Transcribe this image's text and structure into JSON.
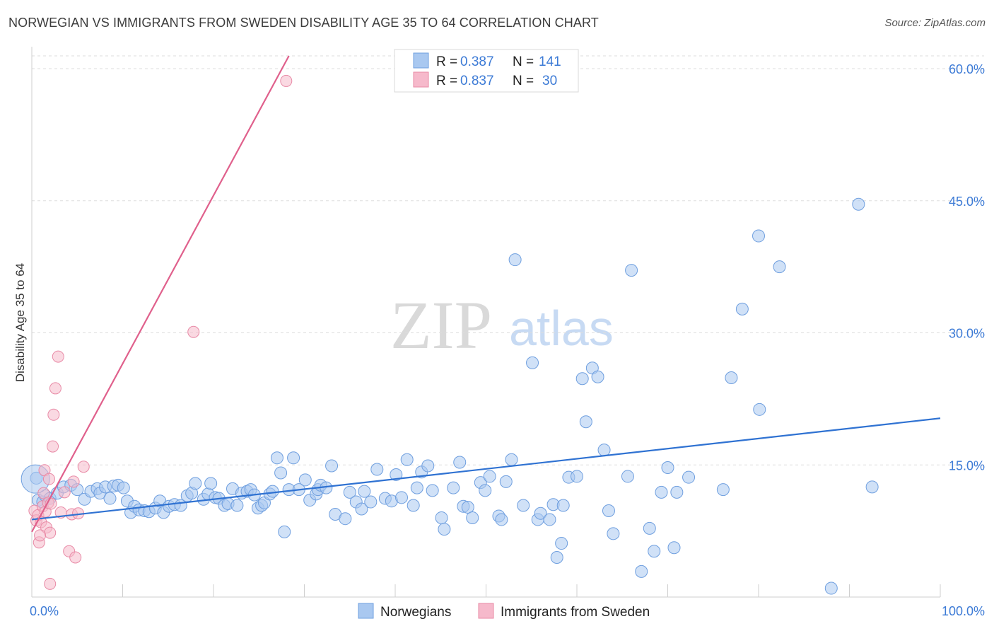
{
  "title": "NORWEGIAN VS IMMIGRANTS FROM SWEDEN DISABILITY AGE 35 TO 64 CORRELATION CHART",
  "source": "Source: ZipAtlas.com",
  "watermark": {
    "zip": "ZIP",
    "atlas": "atlas"
  },
  "colors": {
    "blue_fill": "#a9c8f0",
    "blue_stroke": "#6f9fdf",
    "blue_line": "#2f72d2",
    "pink_fill": "#f6b9cb",
    "pink_stroke": "#e88aa6",
    "pink_line": "#e0608c",
    "grid": "#dddddd",
    "tick_label": "#3d7bd6"
  },
  "legend": {
    "rows": [
      {
        "r_label": "R =",
        "r_value": "0.387",
        "n_label": "N =",
        "n_value": "141"
      },
      {
        "r_label": "R =",
        "r_value": "0.837",
        "n_label": "N =",
        "n_value": "30"
      }
    ]
  },
  "bottom_legend": [
    "Norwegians",
    "Immigrants from Sweden"
  ],
  "chart_data": {
    "type": "scatter",
    "title": "NORWEGIAN VS IMMIGRANTS FROM SWEDEN DISABILITY AGE 35 TO 64 CORRELATION CHART",
    "xlabel": "",
    "ylabel": "Disability Age 35 to 64",
    "xlim": [
      0,
      100
    ],
    "ylim": [
      0,
      60
    ],
    "x_tick_labels": [
      "0.0%",
      "100.0%"
    ],
    "y_ticks": [
      15,
      30,
      45,
      60
    ],
    "y_tick_labels": [
      "15.0%",
      "30.0%",
      "45.0%",
      "60.0%"
    ],
    "grid": true,
    "legend_position": "top-center",
    "series": [
      {
        "name": "Norwegians",
        "r": 0.387,
        "n": 141,
        "trend": {
          "x": [
            0,
            100
          ],
          "y": [
            8.8,
            20.3
          ]
        },
        "points": [
          [
            0.5,
            13.5
          ],
          [
            0.7,
            11.0
          ],
          [
            1.2,
            10.8
          ],
          [
            1.5,
            11.5
          ],
          [
            2.0,
            11.2
          ],
          [
            2.8,
            11.8
          ],
          [
            3.5,
            12.5
          ],
          [
            4.3,
            12.7
          ],
          [
            5.0,
            12.2
          ],
          [
            5.8,
            11.1
          ],
          [
            6.5,
            12.0
          ],
          [
            7.2,
            12.3
          ],
          [
            7.5,
            11.8
          ],
          [
            8.1,
            12.5
          ],
          [
            8.6,
            11.2
          ],
          [
            9.0,
            12.6
          ],
          [
            9.5,
            12.7
          ],
          [
            10.1,
            12.4
          ],
          [
            10.5,
            10.9
          ],
          [
            10.9,
            9.6
          ],
          [
            11.3,
            10.3
          ],
          [
            11.8,
            9.9
          ],
          [
            12.4,
            9.8
          ],
          [
            12.9,
            9.7
          ],
          [
            13.6,
            10.1
          ],
          [
            14.1,
            10.9
          ],
          [
            14.5,
            9.6
          ],
          [
            15.1,
            10.3
          ],
          [
            15.7,
            10.5
          ],
          [
            16.4,
            10.4
          ],
          [
            17.1,
            11.5
          ],
          [
            17.6,
            11.8
          ],
          [
            18.0,
            12.9
          ],
          [
            18.9,
            11.1
          ],
          [
            19.4,
            11.7
          ],
          [
            19.7,
            12.9
          ],
          [
            20.2,
            11.3
          ],
          [
            20.6,
            11.2
          ],
          [
            21.2,
            10.4
          ],
          [
            21.6,
            10.6
          ],
          [
            22.1,
            12.3
          ],
          [
            22.6,
            10.4
          ],
          [
            23.1,
            11.8
          ],
          [
            23.7,
            12.0
          ],
          [
            24.1,
            12.2
          ],
          [
            24.5,
            11.6
          ],
          [
            24.9,
            10.1
          ],
          [
            25.3,
            10.4
          ],
          [
            25.6,
            10.7
          ],
          [
            26.2,
            11.7
          ],
          [
            26.5,
            12.0
          ],
          [
            27.0,
            15.8
          ],
          [
            27.4,
            14.1
          ],
          [
            27.8,
            7.4
          ],
          [
            28.3,
            12.2
          ],
          [
            28.8,
            15.8
          ],
          [
            29.4,
            12.2
          ],
          [
            30.1,
            13.3
          ],
          [
            30.6,
            11.0
          ],
          [
            31.3,
            11.7
          ],
          [
            31.5,
            12.2
          ],
          [
            31.8,
            12.7
          ],
          [
            32.4,
            12.4
          ],
          [
            33.0,
            14.9
          ],
          [
            33.4,
            9.4
          ],
          [
            34.5,
            8.9
          ],
          [
            35.0,
            11.9
          ],
          [
            35.7,
            10.8
          ],
          [
            36.3,
            10.0
          ],
          [
            36.6,
            12.0
          ],
          [
            37.3,
            10.8
          ],
          [
            38.0,
            14.5
          ],
          [
            38.9,
            11.2
          ],
          [
            39.6,
            10.9
          ],
          [
            40.1,
            13.9
          ],
          [
            40.7,
            11.3
          ],
          [
            41.3,
            15.6
          ],
          [
            42.0,
            10.4
          ],
          [
            42.4,
            12.4
          ],
          [
            42.9,
            14.2
          ],
          [
            43.6,
            14.9
          ],
          [
            44.1,
            12.1
          ],
          [
            45.1,
            9.0
          ],
          [
            45.4,
            7.7
          ],
          [
            46.4,
            12.4
          ],
          [
            47.1,
            15.3
          ],
          [
            47.5,
            10.3
          ],
          [
            48.0,
            10.2
          ],
          [
            48.5,
            9.0
          ],
          [
            49.4,
            13.0
          ],
          [
            49.9,
            12.1
          ],
          [
            50.4,
            13.7
          ],
          [
            51.4,
            9.2
          ],
          [
            51.7,
            8.8
          ],
          [
            52.2,
            13.1
          ],
          [
            52.8,
            15.6
          ],
          [
            53.2,
            38.3
          ],
          [
            54.1,
            10.4
          ],
          [
            55.1,
            26.6
          ],
          [
            55.7,
            8.8
          ],
          [
            56.0,
            9.5
          ],
          [
            57.0,
            8.8
          ],
          [
            57.4,
            10.5
          ],
          [
            57.8,
            4.5
          ],
          [
            58.3,
            6.1
          ],
          [
            58.5,
            10.4
          ],
          [
            59.1,
            13.6
          ],
          [
            60.0,
            13.7
          ],
          [
            60.6,
            24.8
          ],
          [
            61.0,
            19.9
          ],
          [
            61.7,
            26.0
          ],
          [
            62.3,
            25.0
          ],
          [
            63.0,
            16.7
          ],
          [
            63.5,
            9.8
          ],
          [
            64.0,
            7.2
          ],
          [
            65.6,
            13.7
          ],
          [
            66.0,
            37.1
          ],
          [
            67.1,
            2.9
          ],
          [
            68.0,
            7.8
          ],
          [
            68.5,
            5.2
          ],
          [
            69.3,
            11.9
          ],
          [
            70.0,
            14.7
          ],
          [
            70.7,
            5.6
          ],
          [
            71.0,
            11.9
          ],
          [
            72.3,
            13.6
          ],
          [
            76.1,
            12.2
          ],
          [
            77.0,
            24.9
          ],
          [
            78.2,
            32.7
          ],
          [
            80.0,
            41.0
          ],
          [
            80.1,
            21.3
          ],
          [
            82.3,
            37.5
          ],
          [
            88.0,
            1.0
          ],
          [
            91.0,
            44.6
          ],
          [
            92.5,
            12.5
          ],
          [
            0.4,
            13.4
          ]
        ]
      },
      {
        "name": "Immigrants from Sweden",
        "r": 0.837,
        "n": 30,
        "trend": {
          "x": [
            0,
            28.3
          ],
          "y": [
            7.4,
            60.0
          ]
        },
        "points": [
          [
            0.3,
            9.8
          ],
          [
            0.5,
            8.7
          ],
          [
            0.7,
            9.3
          ],
          [
            0.8,
            6.2
          ],
          [
            1.0,
            8.5
          ],
          [
            1.2,
            10.3
          ],
          [
            1.3,
            11.8
          ],
          [
            1.5,
            9.7
          ],
          [
            1.6,
            7.9
          ],
          [
            1.8,
            10.7
          ],
          [
            2.0,
            1.5
          ],
          [
            2.0,
            7.3
          ],
          [
            2.1,
            10.6
          ],
          [
            2.3,
            17.1
          ],
          [
            2.4,
            20.7
          ],
          [
            2.6,
            23.7
          ],
          [
            2.9,
            27.3
          ],
          [
            3.2,
            9.6
          ],
          [
            3.6,
            11.9
          ],
          [
            4.1,
            5.2
          ],
          [
            4.4,
            9.4
          ],
          [
            4.6,
            13.1
          ],
          [
            4.8,
            4.5
          ],
          [
            5.1,
            9.5
          ],
          [
            5.7,
            14.8
          ],
          [
            1.4,
            14.4
          ],
          [
            1.9,
            13.4
          ],
          [
            0.9,
            7.0
          ],
          [
            17.8,
            30.1
          ],
          [
            28.0,
            58.6
          ]
        ]
      }
    ]
  }
}
